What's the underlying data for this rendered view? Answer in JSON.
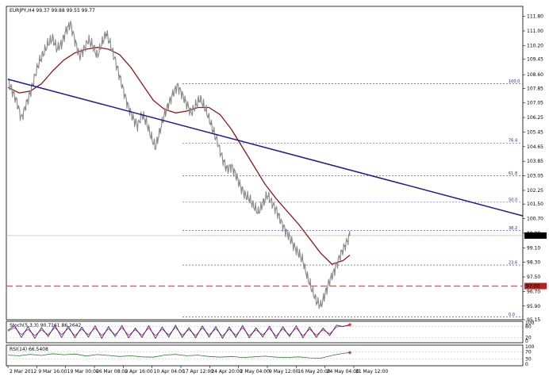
{
  "chart_title": "EURJPY,H4  99.37 99.88 99.55 99.77",
  "colors": {
    "price": "#888888",
    "ma": "#8b1a1a",
    "trendline": "#1c1c8c",
    "fib": "#3a3aa8",
    "support": "#c06060",
    "current_price_bg": "#000000",
    "support_bg": "#b22222",
    "stoch_main": "#1a237e",
    "stoch_signal": "#d81b60",
    "rsi": "#2e7d32",
    "grid": "#d0d0d0"
  },
  "chart_data": [
    {
      "type": "line",
      "panel": "main",
      "instrument": "EURJPY",
      "timeframe": "H4",
      "ohlc_readout": {
        "open": 99.37,
        "high": 99.88,
        "low": 99.55,
        "close": 99.77
      },
      "ylim": [
        95.15,
        112.35
      ],
      "y_ticks": [
        "111.80",
        "111.00",
        "110.20",
        "109.45",
        "108.60",
        "107.85",
        "107.05",
        "106.25",
        "105.45",
        "104.65",
        "103.85",
        "103.05",
        "102.25",
        "101.50",
        "100.70",
        "99.90",
        "99.10",
        "98.30",
        "97.50",
        "96.70",
        "95.90",
        "95.15"
      ],
      "x_ticks": [
        "2 Mar 2012",
        "9 Mar 16:00",
        "19 Mar 00:00",
        "26 Mar 08:00",
        "2 Apr 16:00",
        "10 Apr 04:00",
        "17 Apr 12:00",
        "24 Apr 20:00",
        "2 May 04:00",
        "9 May 12:00",
        "16 May 20:00",
        "24 May 04:00",
        "31 May 12:00"
      ],
      "series": [
        {
          "role": "price",
          "points": [
            [
              0,
              108.3
            ],
            [
              4,
              107.7
            ],
            [
              8,
              107.1
            ],
            [
              12,
              106.2
            ],
            [
              16,
              106.9
            ],
            [
              20,
              107.6
            ],
            [
              24,
              108.5
            ],
            [
              28,
              109.3
            ],
            [
              32,
              109.8
            ],
            [
              36,
              110.3
            ],
            [
              40,
              110.6
            ],
            [
              44,
              110.0
            ],
            [
              48,
              110.3
            ],
            [
              52,
              111.0
            ],
            [
              56,
              111.4
            ],
            [
              60,
              110.5
            ],
            [
              64,
              109.6
            ],
            [
              68,
              110.0
            ],
            [
              72,
              110.5
            ],
            [
              76,
              110.2
            ],
            [
              80,
              109.6
            ],
            [
              84,
              110.3
            ],
            [
              88,
              110.9
            ],
            [
              92,
              110.2
            ],
            [
              96,
              109.4
            ],
            [
              100,
              108.5
            ],
            [
              104,
              107.6
            ],
            [
              108,
              106.8
            ],
            [
              112,
              106.2
            ],
            [
              116,
              105.8
            ],
            [
              120,
              106.4
            ],
            [
              124,
              106.0
            ],
            [
              128,
              105.2
            ],
            [
              132,
              104.6
            ],
            [
              136,
              105.5
            ],
            [
              140,
              106.4
            ],
            [
              144,
              107.0
            ],
            [
              148,
              107.6
            ],
            [
              152,
              108.0
            ],
            [
              156,
              107.5
            ],
            [
              160,
              107.0
            ],
            [
              164,
              106.5
            ],
            [
              168,
              106.9
            ],
            [
              172,
              107.3
            ],
            [
              176,
              106.8
            ],
            [
              180,
              106.2
            ],
            [
              184,
              105.5
            ],
            [
              188,
              104.8
            ],
            [
              192,
              104.0
            ],
            [
              196,
              103.4
            ],
            [
              200,
              103.6
            ],
            [
              204,
              103.1
            ],
            [
              208,
              102.5
            ],
            [
              212,
              102.0
            ],
            [
              216,
              101.8
            ],
            [
              220,
              101.4
            ],
            [
              224,
              101.0
            ],
            [
              228,
              101.5
            ],
            [
              232,
              102.0
            ],
            [
              236,
              101.6
            ],
            [
              240,
              101.2
            ],
            [
              244,
              100.6
            ],
            [
              248,
              100.1
            ],
            [
              252,
              99.7
            ],
            [
              256,
              99.2
            ],
            [
              260,
              98.8
            ],
            [
              264,
              98.4
            ],
            [
              268,
              97.5
            ],
            [
              272,
              96.8
            ],
            [
              276,
              96.2
            ],
            [
              280,
              95.9
            ],
            [
              284,
              96.6
            ],
            [
              288,
              97.3
            ],
            [
              292,
              97.8
            ],
            [
              296,
              98.5
            ],
            [
              300,
              99.0
            ],
            [
              304,
              99.5
            ],
            [
              306,
              99.77
            ]
          ]
        },
        {
          "role": "moving_average",
          "points": [
            [
              0,
              107.9
            ],
            [
              10,
              107.6
            ],
            [
              20,
              107.7
            ],
            [
              30,
              108.1
            ],
            [
              40,
              108.8
            ],
            [
              50,
              109.4
            ],
            [
              60,
              109.8
            ],
            [
              70,
              110.0
            ],
            [
              80,
              110.1
            ],
            [
              90,
              110.0
            ],
            [
              100,
              109.7
            ],
            [
              110,
              109.0
            ],
            [
              120,
              108.1
            ],
            [
              130,
              107.2
            ],
            [
              140,
              106.7
            ],
            [
              150,
              106.5
            ],
            [
              160,
              106.6
            ],
            [
              170,
              106.8
            ],
            [
              180,
              106.8
            ],
            [
              190,
              106.4
            ],
            [
              200,
              105.6
            ],
            [
              210,
              104.6
            ],
            [
              220,
              103.6
            ],
            [
              230,
              102.6
            ],
            [
              240,
              101.8
            ],
            [
              250,
              101.1
            ],
            [
              260,
              100.4
            ],
            [
              270,
              99.6
            ],
            [
              280,
              98.8
            ],
            [
              290,
              98.2
            ],
            [
              300,
              98.4
            ],
            [
              306,
              98.7
            ]
          ]
        }
      ],
      "trendline": {
        "from": [
          0,
          108.35
        ],
        "to": [
          375,
          100.85
        ]
      },
      "fibonacci_levels": [
        {
          "label": "100.0",
          "value": 108.1
        },
        {
          "label": "76.4",
          "value": 104.85
        },
        {
          "label": "61.8",
          "value": 103.05
        },
        {
          "label": "50.0",
          "value": 101.6
        },
        {
          "label": "38.2",
          "value": 100.05
        },
        {
          "label": "23.6",
          "value": 98.15
        },
        {
          "label": "0.0",
          "value": 95.3
        }
      ],
      "horizontal_lines": [
        {
          "role": "current_price",
          "value": 99.77,
          "label": "99.77"
        },
        {
          "role": "support",
          "value": 97.0,
          "label": "97.00"
        }
      ]
    },
    {
      "type": "line",
      "panel": "stochastic",
      "label": "Stoch(5,3,3) 90.7161 86.2642",
      "ylim": [
        0,
        100
      ],
      "y_ticks": [
        "100",
        "80",
        "20",
        "0"
      ],
      "series": [
        {
          "role": "main",
          "points": [
            [
              0,
              60
            ],
            [
              6,
              85
            ],
            [
              12,
              20
            ],
            [
              18,
              80
            ],
            [
              24,
              15
            ],
            [
              30,
              75
            ],
            [
              36,
              25
            ],
            [
              42,
              88
            ],
            [
              48,
              20
            ],
            [
              54,
              82
            ],
            [
              60,
              18
            ],
            [
              66,
              78
            ],
            [
              72,
              22
            ],
            [
              78,
              85
            ],
            [
              84,
              15
            ],
            [
              90,
              80
            ],
            [
              96,
              25
            ],
            [
              102,
              86
            ],
            [
              108,
              18
            ],
            [
              114,
              72
            ],
            [
              120,
              20
            ],
            [
              126,
              85
            ],
            [
              132,
              15
            ],
            [
              138,
              78
            ],
            [
              144,
              22
            ],
            [
              150,
              88
            ],
            [
              156,
              20
            ],
            [
              162,
              75
            ],
            [
              168,
              18
            ],
            [
              174,
              84
            ],
            [
              180,
              22
            ],
            [
              186,
              80
            ],
            [
              192,
              15
            ],
            [
              198,
              78
            ],
            [
              204,
              20
            ],
            [
              210,
              86
            ],
            [
              216,
              18
            ],
            [
              222,
              74
            ],
            [
              228,
              22
            ],
            [
              234,
              82
            ],
            [
              240,
              15
            ],
            [
              246,
              80
            ],
            [
              252,
              25
            ],
            [
              258,
              85
            ],
            [
              264,
              18
            ],
            [
              270,
              78
            ],
            [
              276,
              20
            ],
            [
              282,
              72
            ],
            [
              288,
              30
            ],
            [
              294,
              88
            ],
            [
              300,
              80
            ],
            [
              306,
              90.7
            ]
          ]
        },
        {
          "role": "signal",
          "points": [
            [
              0,
              55
            ],
            [
              6,
              75
            ],
            [
              12,
              35
            ],
            [
              18,
              65
            ],
            [
              24,
              30
            ],
            [
              30,
              62
            ],
            [
              36,
              35
            ],
            [
              42,
              75
            ],
            [
              48,
              35
            ],
            [
              54,
              70
            ],
            [
              60,
              30
            ],
            [
              66,
              66
            ],
            [
              72,
              35
            ],
            [
              78,
              72
            ],
            [
              84,
              30
            ],
            [
              90,
              68
            ],
            [
              96,
              35
            ],
            [
              102,
              74
            ],
            [
              108,
              32
            ],
            [
              114,
              62
            ],
            [
              120,
              32
            ],
            [
              126,
              72
            ],
            [
              132,
              30
            ],
            [
              138,
              66
            ],
            [
              144,
              34
            ],
            [
              150,
              76
            ],
            [
              156,
              32
            ],
            [
              162,
              64
            ],
            [
              168,
              30
            ],
            [
              174,
              72
            ],
            [
              180,
              34
            ],
            [
              186,
              68
            ],
            [
              192,
              28
            ],
            [
              198,
              66
            ],
            [
              204,
              32
            ],
            [
              210,
              74
            ],
            [
              216,
              30
            ],
            [
              222,
              62
            ],
            [
              228,
              34
            ],
            [
              234,
              70
            ],
            [
              240,
              28
            ],
            [
              246,
              68
            ],
            [
              252,
              34
            ],
            [
              258,
              72
            ],
            [
              264,
              30
            ],
            [
              270,
              66
            ],
            [
              276,
              32
            ],
            [
              282,
              62
            ],
            [
              288,
              40
            ],
            [
              294,
              78
            ],
            [
              300,
              82
            ],
            [
              306,
              86.3
            ]
          ]
        }
      ]
    },
    {
      "type": "line",
      "panel": "rsi",
      "label": "RSI(14) 66.5408",
      "ylim": [
        0,
        100
      ],
      "y_ticks": [
        "100",
        "70",
        "30",
        "0"
      ],
      "series": [
        {
          "role": "rsi",
          "points": [
            [
              0,
              52
            ],
            [
              10,
              48
            ],
            [
              20,
              56
            ],
            [
              30,
              50
            ],
            [
              40,
              60
            ],
            [
              50,
              54
            ],
            [
              60,
              58
            ],
            [
              70,
              47
            ],
            [
              80,
              55
            ],
            [
              90,
              50
            ],
            [
              100,
              44
            ],
            [
              110,
              48
            ],
            [
              120,
              42
            ],
            [
              130,
              40
            ],
            [
              140,
              52
            ],
            [
              150,
              56
            ],
            [
              160,
              48
            ],
            [
              170,
              52
            ],
            [
              180,
              44
            ],
            [
              190,
              40
            ],
            [
              200,
              44
            ],
            [
              210,
              38
            ],
            [
              220,
              42
            ],
            [
              230,
              46
            ],
            [
              240,
              40
            ],
            [
              250,
              38
            ],
            [
              260,
              42
            ],
            [
              270,
              36
            ],
            [
              280,
              34
            ],
            [
              290,
              50
            ],
            [
              300,
              62
            ],
            [
              306,
              66.5
            ]
          ]
        }
      ]
    }
  ]
}
